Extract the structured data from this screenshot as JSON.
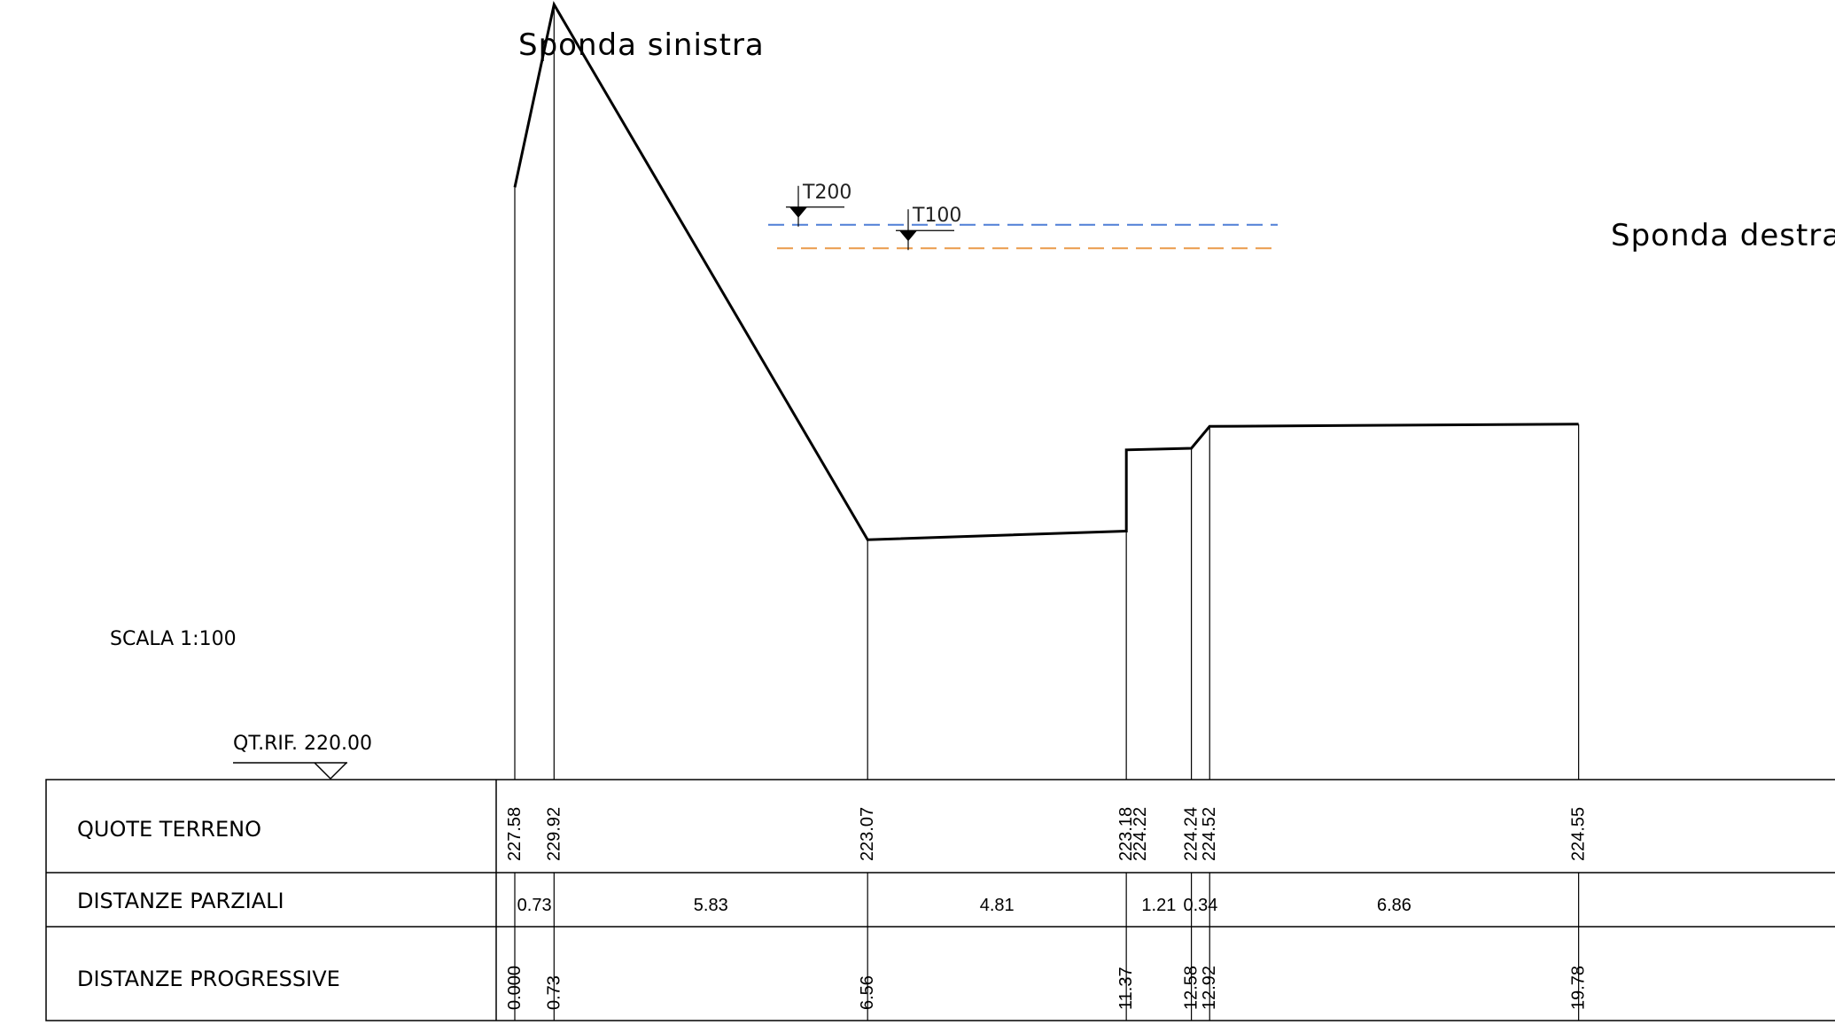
{
  "labels": {
    "left_bank": "Sponda sinistra",
    "right_bank": "Sponda destra",
    "scale": "SCALA 1:100",
    "reference": "QT.RIF. 220.00"
  },
  "water_levels": [
    {
      "label": "T200",
      "elevation": 227.1,
      "color": "#4f7fd6"
    },
    {
      "label": "T100",
      "elevation": 226.8,
      "color": "#ea9a4a"
    }
  ],
  "table": {
    "rows": [
      "QUOTE TERRENO",
      "DISTANZE PARZIALI",
      "DISTANZE PROGRESSIVE"
    ]
  },
  "chart_data": {
    "type": "line",
    "reference_elevation": 220.0,
    "points": [
      {
        "x": 0.0,
        "z": 227.58,
        "progressive": "0.000",
        "elevation_label": "227.58"
      },
      {
        "x": 0.73,
        "z": 229.92,
        "progressive": "0.73",
        "elevation_label": "229.92"
      },
      {
        "x": 6.56,
        "z": 223.07,
        "progressive": "6.56",
        "elevation_label": "223.07"
      },
      {
        "x": 11.37,
        "z": 223.18,
        "progressive": "11.37",
        "elevation_label": "223.18"
      },
      {
        "x": 11.37,
        "z": 224.22,
        "progressive": "",
        "elevation_label": "224.22"
      },
      {
        "x": 12.58,
        "z": 224.24,
        "progressive": "12.58",
        "elevation_label": "224.24"
      },
      {
        "x": 12.92,
        "z": 224.52,
        "progressive": "12.92",
        "elevation_label": "224.52"
      },
      {
        "x": 19.78,
        "z": 224.55,
        "progressive": "19.78",
        "elevation_label": "224.55"
      }
    ],
    "partial_distances": [
      "0.73",
      "5.83",
      "4.81",
      "1.21",
      "0.34",
      "6.86"
    ]
  }
}
